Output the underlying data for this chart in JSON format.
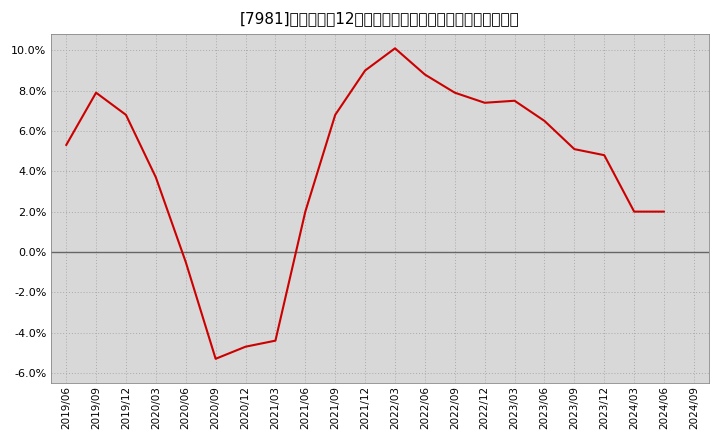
{
  "title": "[7981]　売上高の12か月移動合計の対前年同期増減率の推移",
  "line_color": "#cc0000",
  "bg_color": "#ffffff",
  "plot_bg_color": "#d8d8d8",
  "zero_line_color": "#666666",
  "dates": [
    "2019/06",
    "2019/09",
    "2019/12",
    "2020/03",
    "2020/06",
    "2020/09",
    "2020/12",
    "2021/03",
    "2021/06",
    "2021/09",
    "2021/12",
    "2022/03",
    "2022/06",
    "2022/09",
    "2022/12",
    "2023/03",
    "2023/06",
    "2023/09",
    "2023/12",
    "2024/03",
    "2024/06"
  ],
  "values": [
    0.053,
    0.079,
    0.068,
    0.037,
    -0.005,
    -0.053,
    -0.047,
    -0.044,
    0.02,
    0.068,
    0.09,
    0.101,
    0.088,
    0.079,
    0.074,
    0.075,
    0.065,
    0.051,
    0.048,
    0.02,
    0.02
  ],
  "ylim": [
    -0.065,
    0.108
  ],
  "yticks": [
    -0.06,
    -0.04,
    -0.02,
    0.0,
    0.02,
    0.04,
    0.06,
    0.08,
    0.1
  ],
  "xtick_labels": [
    "2019/06",
    "2019/09",
    "2019/12",
    "2020/03",
    "2020/06",
    "2020/09",
    "2020/12",
    "2021/03",
    "2021/06",
    "2021/09",
    "2021/12",
    "2022/03",
    "2022/06",
    "2022/09",
    "2022/12",
    "2023/03",
    "2023/06",
    "2023/09",
    "2023/12",
    "2024/03",
    "2024/06",
    "2024/09"
  ],
  "title_fontsize": 11,
  "tick_fontsize": 7.5,
  "ytick_fontsize": 8
}
